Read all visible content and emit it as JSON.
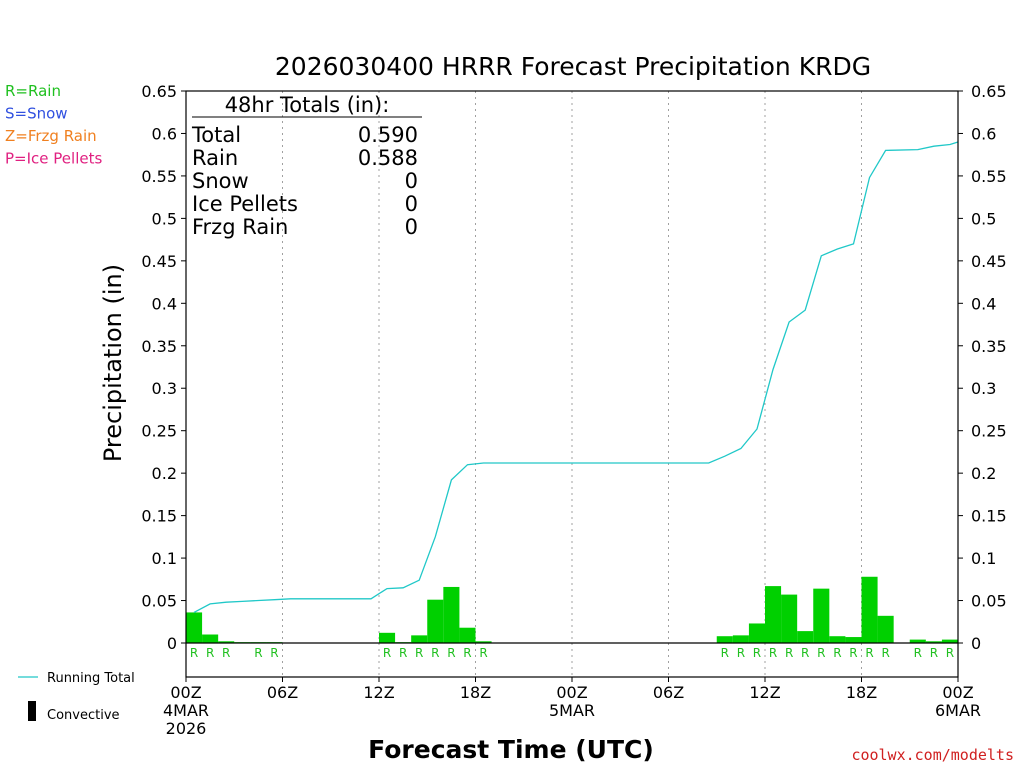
{
  "chart_data": {
    "type": "bar",
    "title": "2026030400 HRRR Forecast Precipitation KRDG",
    "xlabel": "Forecast Time (UTC)",
    "ylabel": "Precipitation (in)",
    "ylim": [
      0,
      0.65
    ],
    "yticks": [
      0,
      0.05,
      0.1,
      0.15,
      0.2,
      0.25,
      0.3,
      0.35,
      0.4,
      0.45,
      0.5,
      0.55,
      0.6,
      0.65
    ],
    "ytick_labels": [
      "0",
      "0.05",
      "0.1",
      "0.15",
      "0.2",
      "0.25",
      "0.3",
      "0.35",
      "0.4",
      "0.45",
      "0.5",
      "0.55",
      "0.6",
      "0.65"
    ],
    "xlim_hours": [
      0,
      48
    ],
    "xticks": [
      {
        "hour": 0,
        "lines": [
          "00Z",
          "4MAR",
          "2026"
        ]
      },
      {
        "hour": 6,
        "lines": [
          "06Z"
        ]
      },
      {
        "hour": 12,
        "lines": [
          "12Z"
        ]
      },
      {
        "hour": 18,
        "lines": [
          "18Z"
        ]
      },
      {
        "hour": 24,
        "lines": [
          "00Z",
          "5MAR"
        ]
      },
      {
        "hour": 30,
        "lines": [
          "06Z"
        ]
      },
      {
        "hour": 36,
        "lines": [
          "12Z"
        ]
      },
      {
        "hour": 42,
        "lines": [
          "18Z"
        ]
      },
      {
        "hour": 48,
        "lines": [
          "00Z",
          "6MAR"
        ]
      }
    ],
    "grid": "dotted vertical at 6h intervals",
    "hourly_precip": {
      "name": "Rain",
      "color": "#00d000",
      "bars": [
        {
          "hour": 1,
          "value": 0.036
        },
        {
          "hour": 2,
          "value": 0.01
        },
        {
          "hour": 3,
          "value": 0.002
        },
        {
          "hour": 4,
          "value": 0.001
        },
        {
          "hour": 5,
          "value": 0.001
        },
        {
          "hour": 6,
          "value": 0.001
        },
        {
          "hour": 13,
          "value": 0.012
        },
        {
          "hour": 14,
          "value": 0.001
        },
        {
          "hour": 15,
          "value": 0.009
        },
        {
          "hour": 16,
          "value": 0.051
        },
        {
          "hour": 17,
          "value": 0.066
        },
        {
          "hour": 18,
          "value": 0.018
        },
        {
          "hour": 19,
          "value": 0.002
        },
        {
          "hour": 34,
          "value": 0.008
        },
        {
          "hour": 35,
          "value": 0.009
        },
        {
          "hour": 36,
          "value": 0.023
        },
        {
          "hour": 37,
          "value": 0.067
        },
        {
          "hour": 38,
          "value": 0.057
        },
        {
          "hour": 39,
          "value": 0.014
        },
        {
          "hour": 40,
          "value": 0.064
        },
        {
          "hour": 41,
          "value": 0.008
        },
        {
          "hour": 42,
          "value": 0.007
        },
        {
          "hour": 43,
          "value": 0.078
        },
        {
          "hour": 44,
          "value": 0.032
        },
        {
          "hour": 46,
          "value": 0.004
        },
        {
          "hour": 47,
          "value": 0.002
        },
        {
          "hour": 48,
          "value": 0.004
        }
      ],
      "type_markers": [
        {
          "hour": 1,
          "label": "R"
        },
        {
          "hour": 2,
          "label": "R"
        },
        {
          "hour": 3,
          "label": "R"
        },
        {
          "hour": 5,
          "label": "R"
        },
        {
          "hour": 6,
          "label": "R"
        },
        {
          "hour": 13,
          "label": "R"
        },
        {
          "hour": 14,
          "label": "R"
        },
        {
          "hour": 15,
          "label": "R"
        },
        {
          "hour": 16,
          "label": "R"
        },
        {
          "hour": 17,
          "label": "R"
        },
        {
          "hour": 18,
          "label": "R"
        },
        {
          "hour": 19,
          "label": "R"
        },
        {
          "hour": 34,
          "label": "R"
        },
        {
          "hour": 35,
          "label": "R"
        },
        {
          "hour": 36,
          "label": "R"
        },
        {
          "hour": 37,
          "label": "R"
        },
        {
          "hour": 38,
          "label": "R"
        },
        {
          "hour": 39,
          "label": "R"
        },
        {
          "hour": 40,
          "label": "R"
        },
        {
          "hour": 41,
          "label": "R"
        },
        {
          "hour": 42,
          "label": "R"
        },
        {
          "hour": 43,
          "label": "R"
        },
        {
          "hour": 44,
          "label": "R"
        },
        {
          "hour": 46,
          "label": "R"
        },
        {
          "hour": 47,
          "label": "R"
        },
        {
          "hour": 48,
          "label": "R"
        }
      ]
    },
    "running_total": {
      "name": "Running Total",
      "color": "#20c8c8",
      "points": [
        [
          0.5,
          0.036
        ],
        [
          1.5,
          0.046
        ],
        [
          2.5,
          0.048
        ],
        [
          3.5,
          0.049
        ],
        [
          4.5,
          0.05
        ],
        [
          5.5,
          0.051
        ],
        [
          6.5,
          0.052
        ],
        [
          7.5,
          0.052
        ],
        [
          8.5,
          0.052
        ],
        [
          9.5,
          0.052
        ],
        [
          10.5,
          0.052
        ],
        [
          11.5,
          0.052
        ],
        [
          12.5,
          0.064
        ],
        [
          13.5,
          0.065
        ],
        [
          14.5,
          0.074
        ],
        [
          15.5,
          0.125
        ],
        [
          16.5,
          0.192
        ],
        [
          17.5,
          0.21
        ],
        [
          18.5,
          0.212
        ],
        [
          19.5,
          0.212
        ],
        [
          22,
          0.212
        ],
        [
          26,
          0.212
        ],
        [
          30,
          0.212
        ],
        [
          32.5,
          0.212
        ],
        [
          33.5,
          0.22
        ],
        [
          34.5,
          0.229
        ],
        [
          35.5,
          0.252
        ],
        [
          36.5,
          0.322
        ],
        [
          37.5,
          0.378
        ],
        [
          38.5,
          0.392
        ],
        [
          39.5,
          0.456
        ],
        [
          40.5,
          0.464
        ],
        [
          41.5,
          0.47
        ],
        [
          42.5,
          0.548
        ],
        [
          43.5,
          0.58
        ],
        [
          45.5,
          0.581
        ],
        [
          46.5,
          0.585
        ],
        [
          47.5,
          0.587
        ],
        [
          48,
          0.59
        ]
      ]
    },
    "legend": {
      "types": [
        {
          "label": "R=Rain",
          "color": "#20c020"
        },
        {
          "label": "S=Snow",
          "color": "#3050e0"
        },
        {
          "label": "Z=Frzg Rain",
          "color": "#f08020"
        },
        {
          "label": "P=Ice Pellets",
          "color": "#e02080"
        }
      ],
      "running_total_label": "Running Total",
      "convective_label": "Convective"
    },
    "totals_box": {
      "header": "48hr Totals (in):",
      "rows": [
        {
          "label": "Total",
          "value": "0.590"
        },
        {
          "label": "Rain",
          "value": "0.588"
        },
        {
          "label": "Snow",
          "value": "0"
        },
        {
          "label": "Ice Pellets",
          "value": "0"
        },
        {
          "label": "Frzg Rain",
          "value": "0"
        }
      ]
    },
    "credit": "coolwx.com/modelts",
    "credit_color": "#d02020"
  }
}
